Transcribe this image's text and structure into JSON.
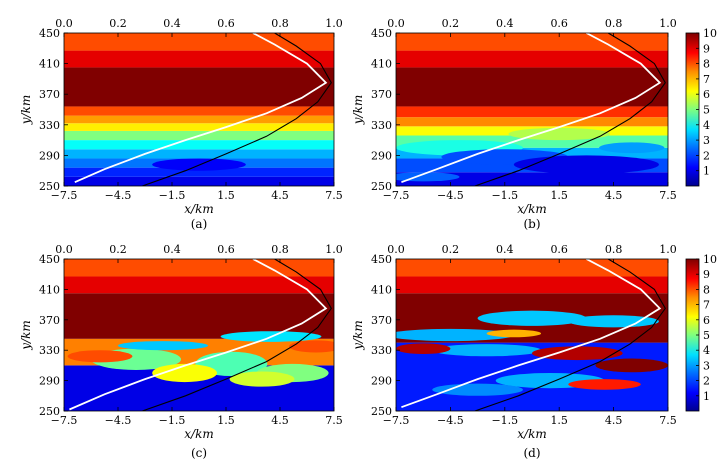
{
  "figure": {
    "panel_captions": [
      "(a)",
      "(b)",
      "(c)",
      "(d)"
    ],
    "xlabel": "x/km",
    "ylabel": "y/km"
  },
  "chart_data": [
    {
      "type": "heatmap",
      "panel": "(a)",
      "xlabel": "x/km",
      "ylabel": "y/km",
      "xlim": [
        -7.5,
        7.5
      ],
      "ylim": [
        250,
        450
      ],
      "x_ticks": [
        "−7.5",
        "−4.5",
        "−1.5",
        "1.5",
        "4.5",
        "7.5"
      ],
      "y_ticks": [
        "250",
        "290",
        "330",
        "370",
        "410",
        "450"
      ],
      "top_axis": {
        "xlim": [
          0,
          1.0
        ],
        "ticks": [
          "0.0",
          "0.2",
          "0.4",
          "0.6",
          "0.8",
          "1.0"
        ]
      },
      "colorbar": {
        "range": [
          0,
          10
        ],
        "ticks": [
          "1",
          "2",
          "3",
          "4",
          "5",
          "6",
          "7",
          "8",
          "9",
          "10"
        ],
        "colormap": "jet"
      },
      "horizontal_bands": [
        {
          "y_from": 250,
          "y_to": 262,
          "value": 1.0
        },
        {
          "y_from": 262,
          "y_to": 274,
          "value": 1.6
        },
        {
          "y_from": 274,
          "y_to": 286,
          "value": 2.4
        },
        {
          "y_from": 286,
          "y_to": 298,
          "value": 3.0
        },
        {
          "y_from": 298,
          "y_to": 310,
          "value": 3.8
        },
        {
          "y_from": 310,
          "y_to": 322,
          "value": 5.0
        },
        {
          "y_from": 322,
          "y_to": 332,
          "value": 6.4
        },
        {
          "y_from": 332,
          "y_to": 342,
          "value": 7.2
        },
        {
          "y_from": 342,
          "y_to": 354,
          "value": 8.0
        },
        {
          "y_from": 354,
          "y_to": 405,
          "value": 10.0
        },
        {
          "y_from": 405,
          "y_to": 427,
          "value": 9.0
        },
        {
          "y_from": 427,
          "y_to": 450,
          "value": 8.0
        }
      ],
      "patches": [
        {
          "x": 0.0,
          "y": 278,
          "rx": 2.6,
          "ry": 8,
          "value": 1.2
        }
      ],
      "white_curve": [
        [
          0.04,
          255
        ],
        [
          0.15,
          272
        ],
        [
          0.3,
          292
        ],
        [
          0.45,
          310
        ],
        [
          0.6,
          327
        ],
        [
          0.75,
          345
        ],
        [
          0.88,
          365
        ],
        [
          0.97,
          385
        ],
        [
          0.9,
          410
        ],
        [
          0.78,
          435
        ],
        [
          0.7,
          450
        ]
      ],
      "black_curve": [
        [
          0.29,
          250
        ],
        [
          0.45,
          270
        ],
        [
          0.6,
          292
        ],
        [
          0.75,
          315
        ],
        [
          0.86,
          338
        ],
        [
          0.94,
          360
        ],
        [
          0.99,
          385
        ],
        [
          0.95,
          410
        ],
        [
          0.86,
          433
        ],
        [
          0.78,
          450
        ]
      ]
    },
    {
      "type": "heatmap",
      "panel": "(b)",
      "xlabel": "x/km",
      "ylabel": "y/km",
      "xlim": [
        -7.5,
        7.5
      ],
      "ylim": [
        250,
        450
      ],
      "x_ticks": [
        "−7.5",
        "−4.5",
        "−1.5",
        "1.5",
        "4.5",
        "7.5"
      ],
      "y_ticks": [
        "250",
        "290",
        "330",
        "370",
        "410",
        "450"
      ],
      "top_axis": {
        "xlim": [
          0,
          1.0
        ],
        "ticks": [
          "0.0",
          "0.2",
          "0.4",
          "0.6",
          "0.8",
          "1.0"
        ]
      },
      "horizontal_bands": [
        {
          "y_from": 250,
          "y_to": 268,
          "value": 1.0
        },
        {
          "y_from": 268,
          "y_to": 286,
          "value": 2.0
        },
        {
          "y_from": 286,
          "y_to": 300,
          "value": 3.0
        },
        {
          "y_from": 300,
          "y_to": 316,
          "value": 4.6
        },
        {
          "y_from": 316,
          "y_to": 328,
          "value": 6.2
        },
        {
          "y_from": 328,
          "y_to": 340,
          "value": 7.4
        },
        {
          "y_from": 340,
          "y_to": 354,
          "value": 8.3
        },
        {
          "y_from": 354,
          "y_to": 405,
          "value": 10.0
        },
        {
          "y_from": 405,
          "y_to": 427,
          "value": 9.0
        },
        {
          "y_from": 427,
          "y_to": 450,
          "value": 8.0
        }
      ],
      "patches": [
        {
          "x": -4.0,
          "y": 300,
          "rx": 3.5,
          "ry": 10,
          "value": 4.0
        },
        {
          "x": 1.5,
          "y": 318,
          "rx": 2.8,
          "ry": 8,
          "value": 5.5
        },
        {
          "x": -1.5,
          "y": 288,
          "rx": 3.5,
          "ry": 10,
          "value": 2.0
        },
        {
          "x": 3.0,
          "y": 278,
          "rx": 4.0,
          "ry": 12,
          "value": 1.0
        },
        {
          "x": -6.0,
          "y": 262,
          "rx": 2.0,
          "ry": 6,
          "value": 2.2
        },
        {
          "x": 5.5,
          "y": 300,
          "rx": 1.8,
          "ry": 7,
          "value": 2.8
        }
      ],
      "white_curve": [
        [
          0.02,
          255
        ],
        [
          0.15,
          272
        ],
        [
          0.3,
          292
        ],
        [
          0.45,
          310
        ],
        [
          0.6,
          327
        ],
        [
          0.75,
          345
        ],
        [
          0.88,
          365
        ],
        [
          0.97,
          385
        ],
        [
          0.9,
          410
        ],
        [
          0.78,
          435
        ],
        [
          0.7,
          450
        ]
      ],
      "black_curve": [
        [
          0.29,
          250
        ],
        [
          0.45,
          270
        ],
        [
          0.6,
          292
        ],
        [
          0.75,
          315
        ],
        [
          0.86,
          338
        ],
        [
          0.94,
          360
        ],
        [
          0.99,
          385
        ],
        [
          0.95,
          410
        ],
        [
          0.86,
          433
        ],
        [
          0.78,
          450
        ]
      ]
    },
    {
      "type": "heatmap",
      "panel": "(c)",
      "xlabel": "x/km",
      "ylabel": "y/km",
      "xlim": [
        -7.5,
        7.5
      ],
      "ylim": [
        250,
        450
      ],
      "x_ticks": [
        "−7.5",
        "−4.5",
        "−1.5",
        "1.5",
        "4.5",
        "7.5"
      ],
      "y_ticks": [
        "250",
        "290",
        "330",
        "370",
        "410",
        "450"
      ],
      "top_axis": {
        "xlim": [
          0,
          1.0
        ],
        "ticks": [
          "0.0",
          "0.2",
          "0.4",
          "0.6",
          "0.8",
          "1.0"
        ]
      },
      "horizontal_bands": [
        {
          "y_from": 250,
          "y_to": 310,
          "value": 1.0
        },
        {
          "y_from": 310,
          "y_to": 345,
          "value": 7.5
        },
        {
          "y_from": 345,
          "y_to": 405,
          "value": 10.0
        },
        {
          "y_from": 405,
          "y_to": 427,
          "value": 9.0
        },
        {
          "y_from": 427,
          "y_to": 450,
          "value": 8.0
        }
      ],
      "patches": [
        {
          "x": -3.5,
          "y": 318,
          "rx": 2.5,
          "ry": 14,
          "value": 4.8
        },
        {
          "x": 1.8,
          "y": 312,
          "rx": 2.0,
          "ry": 16,
          "value": 4.5
        },
        {
          "x": 5.2,
          "y": 300,
          "rx": 2.0,
          "ry": 12,
          "value": 5.0
        },
        {
          "x": -0.8,
          "y": 300,
          "rx": 1.8,
          "ry": 12,
          "value": 6.2
        },
        {
          "x": 3.5,
          "y": 292,
          "rx": 1.8,
          "ry": 10,
          "value": 5.8
        },
        {
          "x": -2.0,
          "y": 336,
          "rx": 2.5,
          "ry": 6,
          "value": 3.2
        },
        {
          "x": 4.0,
          "y": 348,
          "rx": 2.8,
          "ry": 7,
          "value": 3.5
        },
        {
          "x": 6.5,
          "y": 335,
          "rx": 1.5,
          "ry": 8,
          "value": 8.0
        },
        {
          "x": -5.5,
          "y": 322,
          "rx": 1.8,
          "ry": 8,
          "value": 8.0
        },
        {
          "x": 0.5,
          "y": 270,
          "rx": 2.5,
          "ry": 12,
          "value": 1.0
        }
      ],
      "white_curve": [
        [
          0.02,
          252
        ],
        [
          0.15,
          272
        ],
        [
          0.3,
          292
        ],
        [
          0.45,
          310
        ],
        [
          0.6,
          327
        ],
        [
          0.75,
          345
        ],
        [
          0.88,
          365
        ],
        [
          0.97,
          385
        ],
        [
          0.9,
          410
        ],
        [
          0.78,
          435
        ],
        [
          0.7,
          450
        ]
      ],
      "black_curve": [
        [
          0.29,
          250
        ],
        [
          0.45,
          270
        ],
        [
          0.6,
          292
        ],
        [
          0.75,
          315
        ],
        [
          0.86,
          338
        ],
        [
          0.94,
          360
        ],
        [
          0.99,
          385
        ],
        [
          0.95,
          410
        ],
        [
          0.86,
          433
        ],
        [
          0.78,
          450
        ]
      ]
    },
    {
      "type": "heatmap",
      "panel": "(d)",
      "xlabel": "x/km",
      "ylabel": "y/km",
      "xlim": [
        -7.5,
        7.5
      ],
      "ylim": [
        250,
        450
      ],
      "x_ticks": [
        "−7.5",
        "−4.5",
        "−1.5",
        "1.5",
        "4.5",
        "7.5"
      ],
      "y_ticks": [
        "250",
        "290",
        "330",
        "370",
        "410",
        "450"
      ],
      "top_axis": {
        "xlim": [
          0,
          1.0
        ],
        "ticks": [
          "0.0",
          "0.2",
          "0.4",
          "0.6",
          "0.8",
          "1.0"
        ]
      },
      "colorbar": {
        "range": [
          0,
          10
        ],
        "ticks": [
          "1",
          "2",
          "3",
          "4",
          "5",
          "6",
          "7",
          "8",
          "9",
          "10"
        ],
        "colormap": "jet"
      },
      "horizontal_bands": [
        {
          "y_from": 250,
          "y_to": 340,
          "value": 1.5
        },
        {
          "y_from": 340,
          "y_to": 405,
          "value": 10.0
        },
        {
          "y_from": 405,
          "y_to": 427,
          "value": 9.0
        },
        {
          "y_from": 427,
          "y_to": 450,
          "value": 8.0
        }
      ],
      "patches": [
        {
          "x": -4.5,
          "y": 350,
          "rx": 3.5,
          "ry": 8,
          "value": 3.0
        },
        {
          "x": 0.0,
          "y": 372,
          "rx": 3.0,
          "ry": 10,
          "value": 3.2
        },
        {
          "x": 4.5,
          "y": 368,
          "rx": 2.5,
          "ry": 8,
          "value": 3.2
        },
        {
          "x": -2.5,
          "y": 330,
          "rx": 3.0,
          "ry": 8,
          "value": 3.0
        },
        {
          "x": 2.5,
          "y": 326,
          "rx": 2.5,
          "ry": 9,
          "value": 9.5
        },
        {
          "x": 5.5,
          "y": 310,
          "rx": 2.0,
          "ry": 9,
          "value": 10.0
        },
        {
          "x": -6.0,
          "y": 332,
          "rx": 1.5,
          "ry": 7,
          "value": 9.5
        },
        {
          "x": 1.0,
          "y": 290,
          "rx": 3.0,
          "ry": 10,
          "value": 3.0
        },
        {
          "x": -3.0,
          "y": 278,
          "rx": 2.5,
          "ry": 8,
          "value": 2.6
        },
        {
          "x": 4.0,
          "y": 285,
          "rx": 2.0,
          "ry": 7,
          "value": 8.5
        },
        {
          "x": -1.0,
          "y": 352,
          "rx": 1.5,
          "ry": 5,
          "value": 7.0
        }
      ],
      "white_curve": [
        [
          0.02,
          255
        ],
        [
          0.15,
          272
        ],
        [
          0.3,
          292
        ],
        [
          0.45,
          310
        ],
        [
          0.6,
          327
        ],
        [
          0.75,
          345
        ],
        [
          0.88,
          365
        ],
        [
          0.97,
          385
        ],
        [
          0.9,
          410
        ],
        [
          0.78,
          435
        ],
        [
          0.7,
          450
        ]
      ],
      "black_curve": [
        [
          0.29,
          250
        ],
        [
          0.45,
          270
        ],
        [
          0.6,
          292
        ],
        [
          0.75,
          315
        ],
        [
          0.86,
          338
        ],
        [
          0.94,
          360
        ],
        [
          0.99,
          385
        ],
        [
          0.95,
          410
        ],
        [
          0.86,
          433
        ],
        [
          0.78,
          450
        ]
      ]
    }
  ]
}
